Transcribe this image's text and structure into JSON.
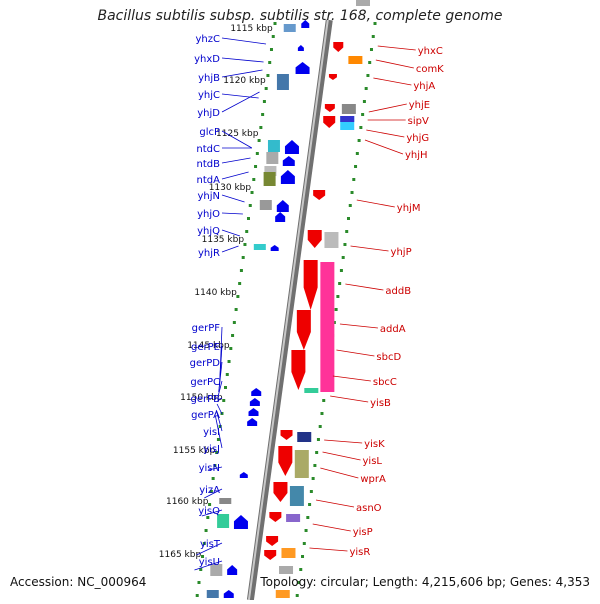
{
  "title": "Bacillus subtilis subsp. subtilis str. 168, complete genome",
  "accession": "Accession: NC_000964",
  "summary": "Topology: circular; Length: 4,215,606 bp; Genes: 4,353",
  "colors": {
    "backbone": "#9a9a9a",
    "tick": "#2a8a2a",
    "reverse": "#0000ee",
    "forward": "#ee0000",
    "label_left": "#0000cc",
    "label_right": "#cc0000"
  },
  "scale_labels": [
    "1115 kbp",
    "1120 kbp",
    "1125 kbp",
    "1130 kbp",
    "1135 kbp",
    "1140 kbp",
    "1145 kbp",
    "1150 kbp",
    "1155 kbp",
    "1160 kbp",
    "1165 kbp"
  ],
  "left_genes": [
    "yhzC",
    "yhxD",
    "yhjB",
    "yhjC",
    "yhjD",
    "glcP",
    "ntdC",
    "ntdB",
    "ntdA",
    "yhjN",
    "yhjO",
    "yhjQ",
    "yhjR",
    "gerPF",
    "gerPE",
    "gerPD",
    "gerPC",
    "gerPB",
    "gerPA",
    "yisI",
    "yisJ",
    "yisN",
    "yizA",
    "yisQ",
    "yisT",
    "yisU"
  ],
  "right_genes": [
    "yhxC",
    "comK",
    "yhjA",
    "yhjE",
    "sipV",
    "yhjG",
    "yhjH",
    "yhjM",
    "yhjP",
    "addB",
    "addA",
    "sbcD",
    "sbcC",
    "yisB",
    "yisK",
    "yisL",
    "wprA",
    "asnO",
    "yisP",
    "yisR"
  ]
}
